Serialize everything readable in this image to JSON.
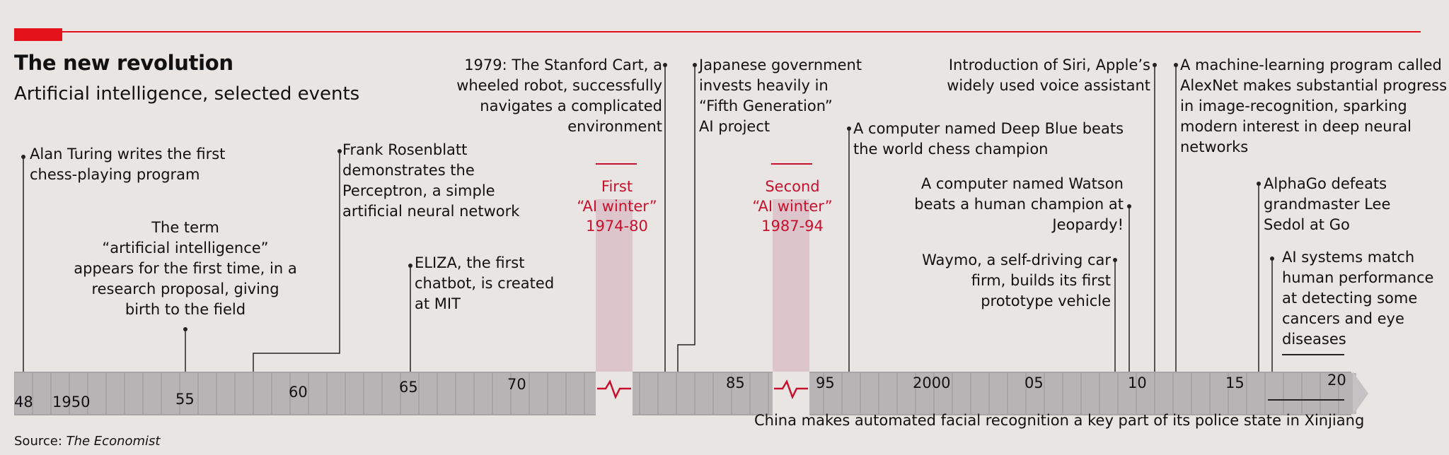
{
  "header": {
    "title": "The new revolution",
    "subtitle": "Artificial intelligence, selected events"
  },
  "events": {
    "turing": [
      "Alan Turing writes the first",
      "chess-playing program"
    ],
    "ai_term": [
      "The term",
      "“artificial intelligence”",
      "appears for the first time, in a",
      "research proposal, giving",
      "birth to the field"
    ],
    "perceptron": [
      "Frank Rosenblatt",
      "demonstrates the",
      "Perceptron, a simple",
      "artificial neural network"
    ],
    "eliza": [
      "ELIZA, the first",
      "chatbot, is created",
      "at MIT"
    ],
    "stanford_cart": [
      "1979: The Stanford Cart, a",
      "wheeled robot, successfully",
      "navigates a complicated",
      "environment"
    ],
    "fifth_gen": [
      "Japanese government",
      "invests heavily in",
      "“Fifth Generation”",
      "AI project"
    ],
    "deep_blue": [
      "A computer named Deep Blue beats",
      "the world chess champion"
    ],
    "watson": [
      "A computer named Watson",
      "beats a human champion at",
      "Jeopardy!"
    ],
    "waymo": [
      "Waymo, a self-driving car",
      "firm, builds its first",
      "prototype vehicle"
    ],
    "siri": [
      "Introduction of Siri, Apple’s",
      "widely used voice assistant"
    ],
    "alexnet": [
      "A machine-learning program called",
      "AlexNet makes substantial progress",
      "in image-recognition, sparking",
      "modern interest in deep neural",
      "networks"
    ],
    "alphago": [
      "AlphaGo defeats",
      "grandmaster Lee",
      "Sedol at Go"
    ],
    "ai_match": [
      "AI systems match",
      "human performance",
      "at detecting some",
      "cancers and eye",
      "diseases"
    ]
  },
  "winters": [
    {
      "label": "First",
      "name": "“AI winter”",
      "years": "1974-80"
    },
    {
      "label": "Second",
      "name": "“AI winter”",
      "years": "1987-94"
    }
  ],
  "axis": {
    "ticks": [
      "48",
      "1950",
      "55",
      "60",
      "65",
      "70",
      "85",
      "95",
      "2000",
      "05",
      "10",
      "15",
      "20"
    ]
  },
  "footer": {
    "bottom_note": "China makes automated facial recognition a key part of its police state in Xinjiang",
    "source_label": "Source: ",
    "source_name": "The Economist"
  },
  "colors": {
    "accent_red": "#e3121b",
    "winter_red": "#c8102e",
    "axis_grey": "#a9a5a7",
    "winter_band": "#dcc6cc"
  }
}
